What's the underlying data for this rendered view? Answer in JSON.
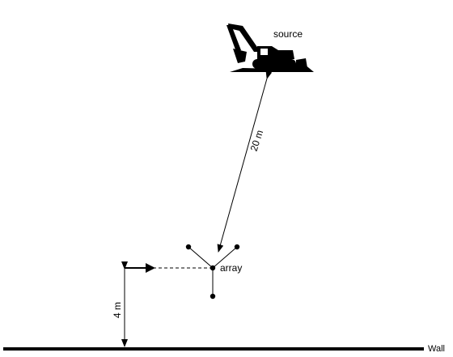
{
  "labels": {
    "source": "source",
    "array": "array",
    "distance_source_array": "20 m",
    "distance_wall": "4 m",
    "wall": "Wall"
  },
  "icons": {
    "source": "excavator-icon"
  },
  "colors": {
    "ink": "#000000",
    "background": "#ffffff"
  }
}
